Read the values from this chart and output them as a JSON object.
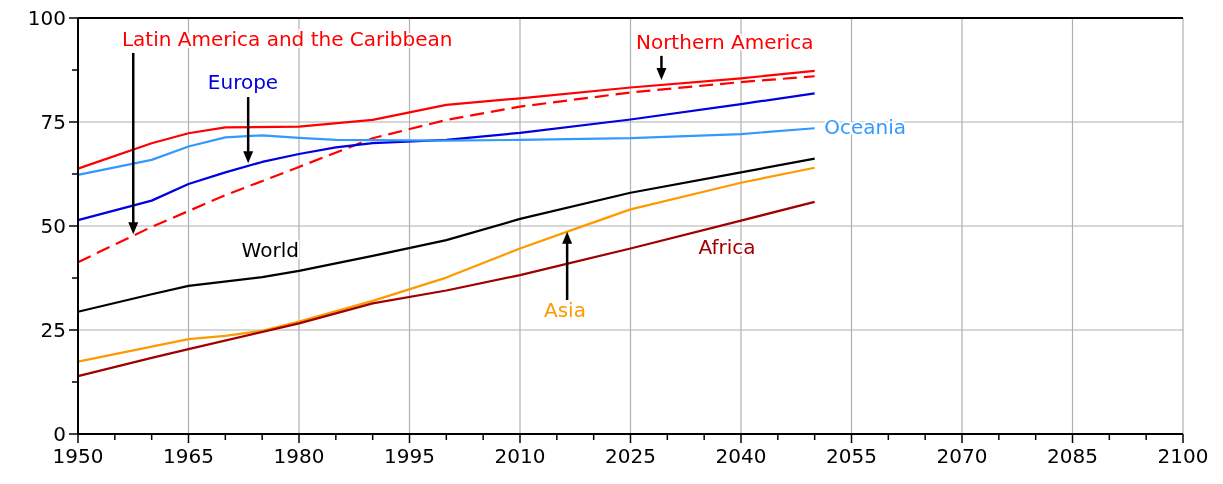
{
  "chart_data": {
    "type": "line",
    "xlim": [
      1950,
      2100
    ],
    "ylim": [
      0,
      100
    ],
    "xticks": [
      1950,
      {
        "value": 1955,
        "label": null
      },
      {
        "value": 1960,
        "label": null
      },
      1965,
      {
        "value": 1970,
        "label": null
      },
      {
        "value": 1975,
        "label": null
      },
      1980,
      {
        "value": 1985,
        "label": null
      },
      {
        "value": 1990,
        "label": null
      },
      1995,
      {
        "value": 2000,
        "label": null
      },
      {
        "value": 2005,
        "label": null
      },
      2010,
      {
        "value": 2015,
        "label": null
      },
      {
        "value": 2020,
        "label": null
      },
      2025,
      {
        "value": 2030,
        "label": null
      },
      {
        "value": 2035,
        "label": null
      },
      2040,
      {
        "value": 2045,
        "label": null
      },
      {
        "value": 2050,
        "label": null
      },
      2055,
      {
        "value": 2060,
        "label": null
      },
      {
        "value": 2065,
        "label": null
      },
      2070,
      {
        "value": 2075,
        "label": null
      },
      {
        "value": 2080,
        "label": null
      },
      2085,
      {
        "value": 2090,
        "label": null
      },
      {
        "value": 2095,
        "label": null
      },
      2100
    ],
    "yticks": [
      0,
      {
        "value": 12.5,
        "label": null
      },
      25,
      {
        "value": 37.5,
        "label": null
      },
      50,
      {
        "value": 62.5,
        "label": null
      },
      75,
      {
        "value": 87.5,
        "label": null
      },
      100
    ],
    "grid": true,
    "series": [
      {
        "name": "Northern America",
        "color": "#ff0000",
        "x": [
          1950,
          1960,
          1965,
          1970,
          1980,
          1990,
          2000,
          2010,
          2025,
          2040,
          2050
        ],
        "values": [
          63.8,
          69.9,
          72.3,
          73.7,
          73.9,
          75.5,
          79.1,
          80.7,
          83.3,
          85.5,
          87.3
        ]
      },
      {
        "name": "Latin America and the Caribbean",
        "color": "#ff0000",
        "line_style": "dashed",
        "x": [
          1950,
          1960,
          1970,
          1980,
          1990,
          2000,
          2010,
          2025,
          2040,
          2050
        ],
        "values": [
          41.3,
          49.8,
          57.4,
          64.2,
          71.1,
          75.5,
          78.7,
          82.1,
          84.6,
          86
        ]
      },
      {
        "name": "Europe",
        "color": "#0000e0",
        "x": [
          1950,
          1960,
          1965,
          1970,
          1975,
          1980,
          1985,
          1990,
          2000,
          2010,
          2025,
          2040,
          2050
        ],
        "values": [
          51.4,
          56.1,
          60.1,
          62.9,
          65.4,
          67.3,
          68.9,
          69.9,
          70.7,
          72.4,
          75.6,
          79.3,
          81.9
        ]
      },
      {
        "name": "Oceania",
        "color": "#3399ff",
        "x": [
          1950,
          1960,
          1965,
          1970,
          1975,
          1980,
          1985,
          2000,
          2010,
          2025,
          2040,
          2050
        ],
        "values": [
          62.3,
          65.9,
          69.1,
          71.3,
          71.8,
          71.2,
          70.7,
          70.5,
          70.7,
          71.1,
          72.1,
          73.5
        ]
      },
      {
        "name": "World",
        "color": "#000000",
        "x": [
          1950,
          1960,
          1965,
          1975,
          1980,
          1990,
          2000,
          2010,
          2025,
          2040,
          2050
        ],
        "values": [
          29.4,
          33.6,
          35.6,
          37.7,
          39.2,
          42.8,
          46.6,
          51.7,
          58,
          62.9,
          66.2
        ]
      },
      {
        "name": "Asia",
        "color": "#ff9900",
        "x": [
          1950,
          1960,
          1965,
          1970,
          1975,
          1980,
          1990,
          2000,
          2010,
          2017,
          2025,
          2040,
          2050
        ],
        "values": [
          17.4,
          21,
          22.8,
          23.6,
          24.8,
          27,
          32,
          37.6,
          44.6,
          49,
          54,
          60.4,
          64
        ]
      },
      {
        "name": "Africa",
        "color": "#a00000",
        "x": [
          1950,
          1960,
          1965,
          1980,
          1990,
          2000,
          2010,
          2025,
          2040,
          2050
        ],
        "values": [
          13.9,
          18.3,
          20.4,
          26.6,
          31.4,
          34.5,
          38.2,
          44.6,
          51.3,
          55.8
        ]
      }
    ]
  }
}
